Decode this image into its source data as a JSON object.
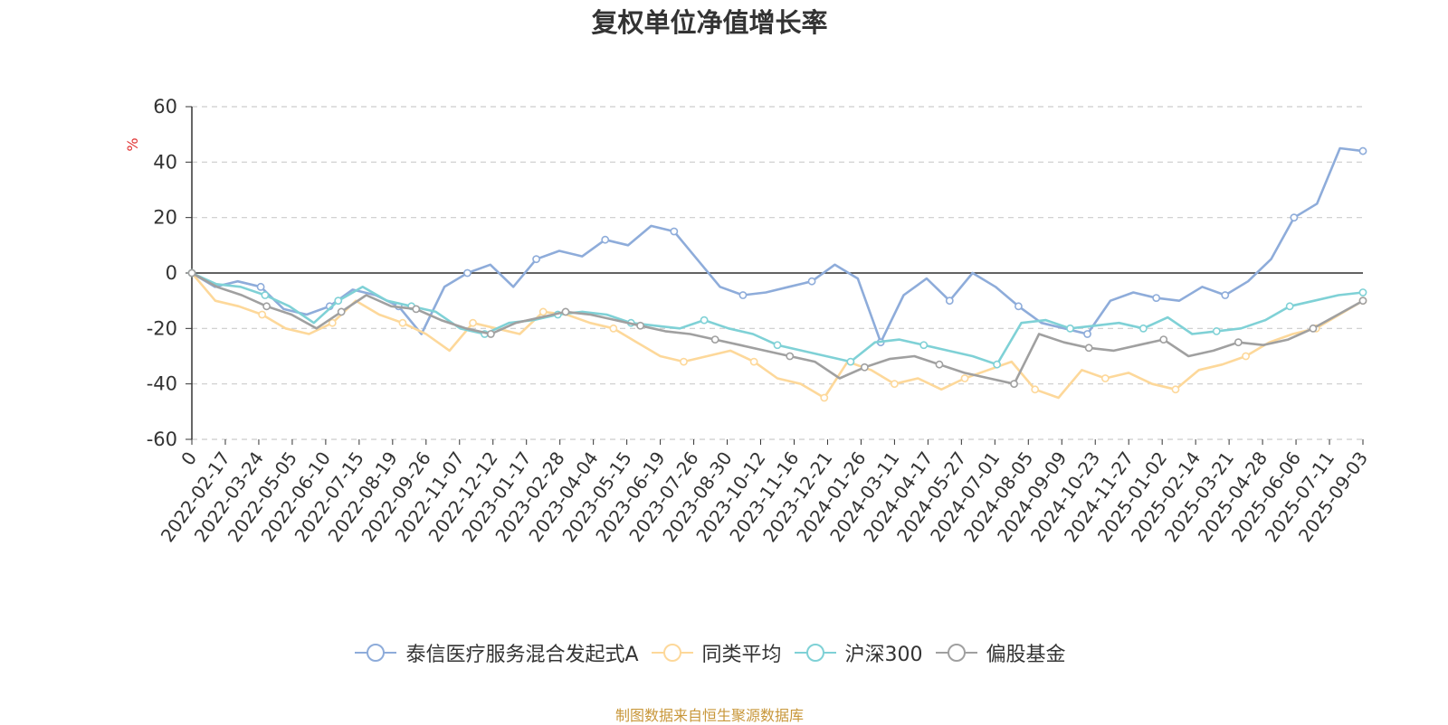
{
  "chart_data": {
    "type": "line",
    "title": "复权单位净值增长率",
    "ylabel": "%",
    "ylim": [
      -60,
      60
    ],
    "yticks": [
      60,
      40,
      20,
      0,
      -20,
      -40,
      -60
    ],
    "xticks": [
      "0",
      "2022-02-17",
      "2022-03-24",
      "2022-05-05",
      "2022-06-10",
      "2022-07-15",
      "2022-08-19",
      "2022-09-26",
      "2022-11-07",
      "2022-12-12",
      "2023-01-17",
      "2023-02-28",
      "2023-04-04",
      "2023-05-15",
      "2023-06-19",
      "2023-07-26",
      "2023-08-30",
      "2023-10-12",
      "2023-11-16",
      "2023-12-21",
      "2024-01-26",
      "2024-03-11",
      "2024-04-17",
      "2024-05-27",
      "2024-07-01",
      "2024-08-05",
      "2024-09-09",
      "2024-10-23",
      "2024-11-27",
      "2025-01-02",
      "2025-02-14",
      "2025-03-21",
      "2025-04-28",
      "2025-06-06",
      "2025-07-11",
      "2025-09-03"
    ],
    "grid": true,
    "legend_position": "bottom",
    "series": [
      {
        "name": "泰信医疗服务混合发起式A",
        "color": "#8eacda",
        "values": [
          0,
          -5,
          -3,
          -5,
          -13,
          -15,
          -12,
          -6,
          -8,
          -12,
          -22,
          -5,
          0,
          3,
          -5,
          5,
          8,
          6,
          12,
          10,
          17,
          15,
          5,
          -5,
          -8,
          -7,
          -5,
          -3,
          3,
          -2,
          -25,
          -8,
          -2,
          -10,
          0,
          -5,
          -12,
          -18,
          -20,
          -22,
          -10,
          -7,
          -9,
          -10,
          -5,
          -8,
          -3,
          5,
          20,
          25,
          45,
          44
        ]
      },
      {
        "name": "同类平均",
        "color": "#fdd89a",
        "values": [
          0,
          -10,
          -12,
          -15,
          -20,
          -22,
          -18,
          -10,
          -15,
          -18,
          -22,
          -28,
          -18,
          -20,
          -22,
          -14,
          -15,
          -18,
          -20,
          -25,
          -30,
          -32,
          -30,
          -28,
          -32,
          -38,
          -40,
          -45,
          -32,
          -35,
          -40,
          -38,
          -42,
          -38,
          -35,
          -32,
          -42,
          -45,
          -35,
          -38,
          -36,
          -40,
          -42,
          -35,
          -33,
          -30,
          -25,
          -22,
          -20,
          -15,
          -10
        ]
      },
      {
        "name": "沪深300",
        "color": "#7fd1d6",
        "values": [
          0,
          -4,
          -5,
          -8,
          -12,
          -18,
          -10,
          -5,
          -10,
          -12,
          -14,
          -20,
          -22,
          -18,
          -17,
          -15,
          -14,
          -15,
          -18,
          -19,
          -20,
          -17,
          -20,
          -22,
          -26,
          -28,
          -30,
          -32,
          -25,
          -24,
          -26,
          -28,
          -30,
          -33,
          -18,
          -17,
          -20,
          -19,
          -18,
          -20,
          -16,
          -22,
          -21,
          -20,
          -17,
          -12,
          -10,
          -8,
          -7
        ]
      },
      {
        "name": "偏股基金",
        "color": "#a0a0a0",
        "values": [
          0,
          -5,
          -8,
          -12,
          -15,
          -20,
          -14,
          -8,
          -12,
          -13,
          -17,
          -20,
          -22,
          -18,
          -16,
          -14,
          -15,
          -17,
          -19,
          -21,
          -22,
          -24,
          -26,
          -28,
          -30,
          -32,
          -38,
          -34,
          -31,
          -30,
          -33,
          -36,
          -38,
          -40,
          -22,
          -25,
          -27,
          -28,
          -26,
          -24,
          -30,
          -28,
          -25,
          -26,
          -24,
          -20,
          -15,
          -10
        ]
      }
    ]
  },
  "source_text": "制图数据来自恒生聚源数据库"
}
